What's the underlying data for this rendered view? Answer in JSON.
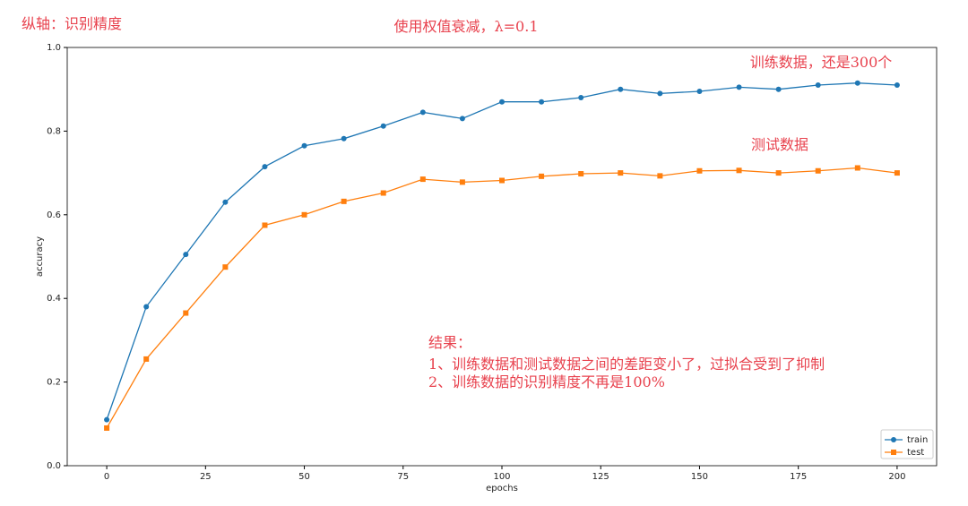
{
  "chart_data": {
    "type": "line",
    "annotations": [
      "纵轴：识别精度",
      "使用权值衰减，λ=0.1",
      "训练数据，还是300个",
      "测试数据",
      "结果：",
      "1、训练数据和测试数据之间的差距变小了，过拟合受到了抑制",
      "2、训练数据的识别精度不再是100%"
    ],
    "x_label": "epochs",
    "y_label": "accuracy",
    "x": [
      0,
      10,
      20,
      30,
      40,
      50,
      60,
      70,
      80,
      90,
      100,
      110,
      120,
      130,
      140,
      150,
      160,
      170,
      180,
      190,
      200
    ],
    "series": [
      {
        "name": "train",
        "color": "#1f77b4",
        "values": [
          0.11,
          0.38,
          0.505,
          0.63,
          0.715,
          0.765,
          0.782,
          0.812,
          0.845,
          0.83,
          0.87,
          0.87,
          0.88,
          0.9,
          0.89,
          0.895,
          0.905,
          0.9,
          0.91,
          0.915,
          0.91
        ]
      },
      {
        "name": "test",
        "color": "#ff7f0e",
        "values": [
          0.09,
          0.255,
          0.365,
          0.475,
          0.575,
          0.6,
          0.632,
          0.652,
          0.685,
          0.678,
          0.682,
          0.692,
          0.698,
          0.7,
          0.693,
          0.705,
          0.706,
          0.7,
          0.705,
          0.712,
          0.7
        ]
      }
    ],
    "xlim": [
      -10,
      210
    ],
    "ylim": [
      0,
      1
    ],
    "xticks": [
      0,
      25,
      50,
      75,
      100,
      125,
      150,
      175,
      200
    ],
    "yticks": [
      {
        "value": 0,
        "label": "0.0"
      },
      0.2,
      0.4,
      0.6,
      0.8,
      {
        "value": 1,
        "label": "1.0"
      }
    ],
    "legend": "lower right"
  }
}
